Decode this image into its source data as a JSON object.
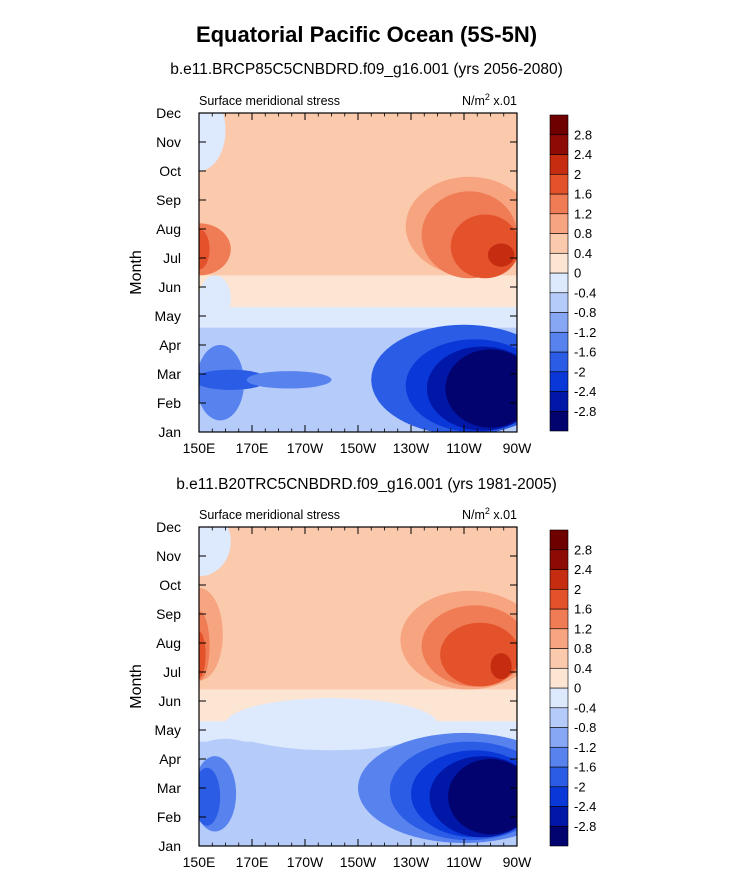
{
  "title": "Equatorial Pacific Ocean (5S-5N)",
  "chart_data": [
    {
      "type": "heatmap",
      "title": "b.e11.BRCP85C5CNBDRD.f09_g16.001 (yrs 2056-2080)",
      "left_label": "Surface meridional stress",
      "right_label": "N/m",
      "right_label_sup": "2",
      "right_label_tail": " x.01",
      "ylabel": "Month",
      "xticks": [
        "150E",
        "170E",
        "170W",
        "150W",
        "130W",
        "110W",
        "90W"
      ],
      "xtick_values": [
        150,
        170,
        190,
        210,
        230,
        250,
        270
      ],
      "yticks": [
        "Jan",
        "Feb",
        "Mar",
        "Apr",
        "May",
        "Jun",
        "Jul",
        "Aug",
        "Sep",
        "Oct",
        "Nov",
        "Dec"
      ],
      "xlim": [
        150,
        270
      ],
      "ylim": [
        1,
        12
      ],
      "colorbar": {
        "levels": [
          "-2.8",
          "-2.4",
          "-2",
          "-1.6",
          "-1.2",
          "-0.8",
          "-0.4",
          "0",
          "0.4",
          "0.8",
          "1.2",
          "1.6",
          "2",
          "2.4",
          "2.8"
        ],
        "colors": [
          "#02036e",
          "#0017a8",
          "#0a38d8",
          "#2b5ce6",
          "#5883ee",
          "#87a7f4",
          "#b5cbf9",
          "#dde9fd",
          "#fde5d3",
          "#fbc9ac",
          "#f7a480",
          "#f07c55",
          "#e4522b",
          "#c62d10",
          "#8e0b05",
          "#6e0000"
        ]
      },
      "blobs": [
        {
          "x": 150,
          "y": 11.4,
          "rx": 10,
          "ry": 1.4,
          "level": 7
        },
        {
          "x": 150,
          "y": 7.3,
          "rx": 12,
          "ry": 0.9,
          "level": 11
        },
        {
          "x": 150,
          "y": 7.3,
          "rx": 4,
          "ry": 0.7,
          "level": 12
        },
        {
          "x": 250,
          "y": 9.8,
          "rx": 30,
          "ry": 2.0,
          "level": 9
        },
        {
          "x": 252,
          "y": 8.1,
          "rx": 24,
          "ry": 1.7,
          "level": 10
        },
        {
          "x": 252,
          "y": 7.8,
          "rx": 18,
          "ry": 1.5,
          "level": 11
        },
        {
          "x": 258,
          "y": 7.4,
          "rx": 13,
          "ry": 1.1,
          "level": 12
        },
        {
          "x": 264,
          "y": 7.1,
          "rx": 5,
          "ry": 0.4,
          "level": 13
        },
        {
          "x": 156,
          "y": 5.6,
          "rx": 6,
          "ry": 0.8,
          "level": 7
        },
        {
          "x": 175,
          "y": 1.4,
          "rx": 30,
          "ry": 0.9,
          "level": 6
        },
        {
          "x": 175,
          "y": 3.3,
          "rx": 26,
          "ry": 0.9,
          "level": 6
        },
        {
          "x": 158,
          "y": 2.7,
          "rx": 9,
          "ry": 1.3,
          "level": 4
        },
        {
          "x": 162,
          "y": 2.8,
          "rx": 14,
          "ry": 0.35,
          "level": 3
        },
        {
          "x": 184,
          "y": 2.8,
          "rx": 16,
          "ry": 0.3,
          "level": 4
        },
        {
          "x": 250,
          "y": 2.8,
          "rx": 35,
          "ry": 1.9,
          "level": 3
        },
        {
          "x": 254,
          "y": 2.6,
          "rx": 26,
          "ry": 1.6,
          "level": 2
        },
        {
          "x": 257,
          "y": 2.5,
          "rx": 21,
          "ry": 1.45,
          "level": 1
        },
        {
          "x": 260,
          "y": 2.5,
          "rx": 17,
          "ry": 1.35,
          "level": 0
        }
      ]
    },
    {
      "type": "heatmap",
      "title": "b.e11.B20TRC5CNBDRD.f09_g16.001 (yrs 1981-2005)",
      "left_label": "Surface meridional stress",
      "right_label": "N/m",
      "right_label_sup": "2",
      "right_label_tail": " x.01",
      "ylabel": "Month",
      "xticks": [
        "150E",
        "170E",
        "170W",
        "150W",
        "130W",
        "110W",
        "90W"
      ],
      "xtick_values": [
        150,
        170,
        190,
        210,
        230,
        250,
        270
      ],
      "yticks": [
        "Jan",
        "Feb",
        "Mar",
        "Apr",
        "May",
        "Jun",
        "Jul",
        "Aug",
        "Sep",
        "Oct",
        "Nov",
        "Dec"
      ],
      "xlim": [
        150,
        270
      ],
      "ylim": [
        1,
        12
      ],
      "colorbar": {
        "levels": [
          "-2.8",
          "-2.4",
          "-2",
          "-1.6",
          "-1.2",
          "-0.8",
          "-0.4",
          "0",
          "0.4",
          "0.8",
          "1.2",
          "1.6",
          "2",
          "2.4",
          "2.8"
        ],
        "colors": [
          "#02036e",
          "#0017a8",
          "#0a38d8",
          "#2b5ce6",
          "#5883ee",
          "#87a7f4",
          "#b5cbf9",
          "#dde9fd",
          "#fde5d3",
          "#fbc9ac",
          "#f7a480",
          "#f07c55",
          "#e4522b",
          "#c62d10",
          "#8e0b05",
          "#6e0000"
        ]
      },
      "blobs": [
        {
          "x": 150,
          "y": 11.5,
          "rx": 12,
          "ry": 1.2,
          "level": 7
        },
        {
          "x": 150,
          "y": 8.3,
          "rx": 9,
          "ry": 1.6,
          "level": 10
        },
        {
          "x": 150,
          "y": 7.9,
          "rx": 4,
          "ry": 1.2,
          "level": 11
        },
        {
          "x": 150,
          "y": 7.6,
          "rx": 2.5,
          "ry": 0.8,
          "level": 12
        },
        {
          "x": 250,
          "y": 9.5,
          "rx": 31,
          "ry": 2.2,
          "level": 9
        },
        {
          "x": 252,
          "y": 8.1,
          "rx": 26,
          "ry": 1.7,
          "level": 10
        },
        {
          "x": 254,
          "y": 7.9,
          "rx": 20,
          "ry": 1.4,
          "level": 11
        },
        {
          "x": 256,
          "y": 7.6,
          "rx": 15,
          "ry": 1.1,
          "level": 12
        },
        {
          "x": 264,
          "y": 7.2,
          "rx": 4,
          "ry": 0.45,
          "level": 13
        },
        {
          "x": 200,
          "y": 5.2,
          "rx": 40,
          "ry": 0.9,
          "level": 7
        },
        {
          "x": 160,
          "y": 3.0,
          "rx": 20,
          "ry": 1.7,
          "level": 6
        },
        {
          "x": 156,
          "y": 2.8,
          "rx": 8,
          "ry": 1.3,
          "level": 4
        },
        {
          "x": 153,
          "y": 2.7,
          "rx": 5,
          "ry": 1.0,
          "level": 3
        },
        {
          "x": 250,
          "y": 3.0,
          "rx": 40,
          "ry": 1.9,
          "level": 4
        },
        {
          "x": 252,
          "y": 2.9,
          "rx": 30,
          "ry": 1.7,
          "level": 3
        },
        {
          "x": 254,
          "y": 2.8,
          "rx": 24,
          "ry": 1.5,
          "level": 2
        },
        {
          "x": 257,
          "y": 2.7,
          "rx": 20,
          "ry": 1.4,
          "level": 1
        },
        {
          "x": 260,
          "y": 2.7,
          "rx": 16,
          "ry": 1.3,
          "level": 0
        }
      ]
    }
  ]
}
